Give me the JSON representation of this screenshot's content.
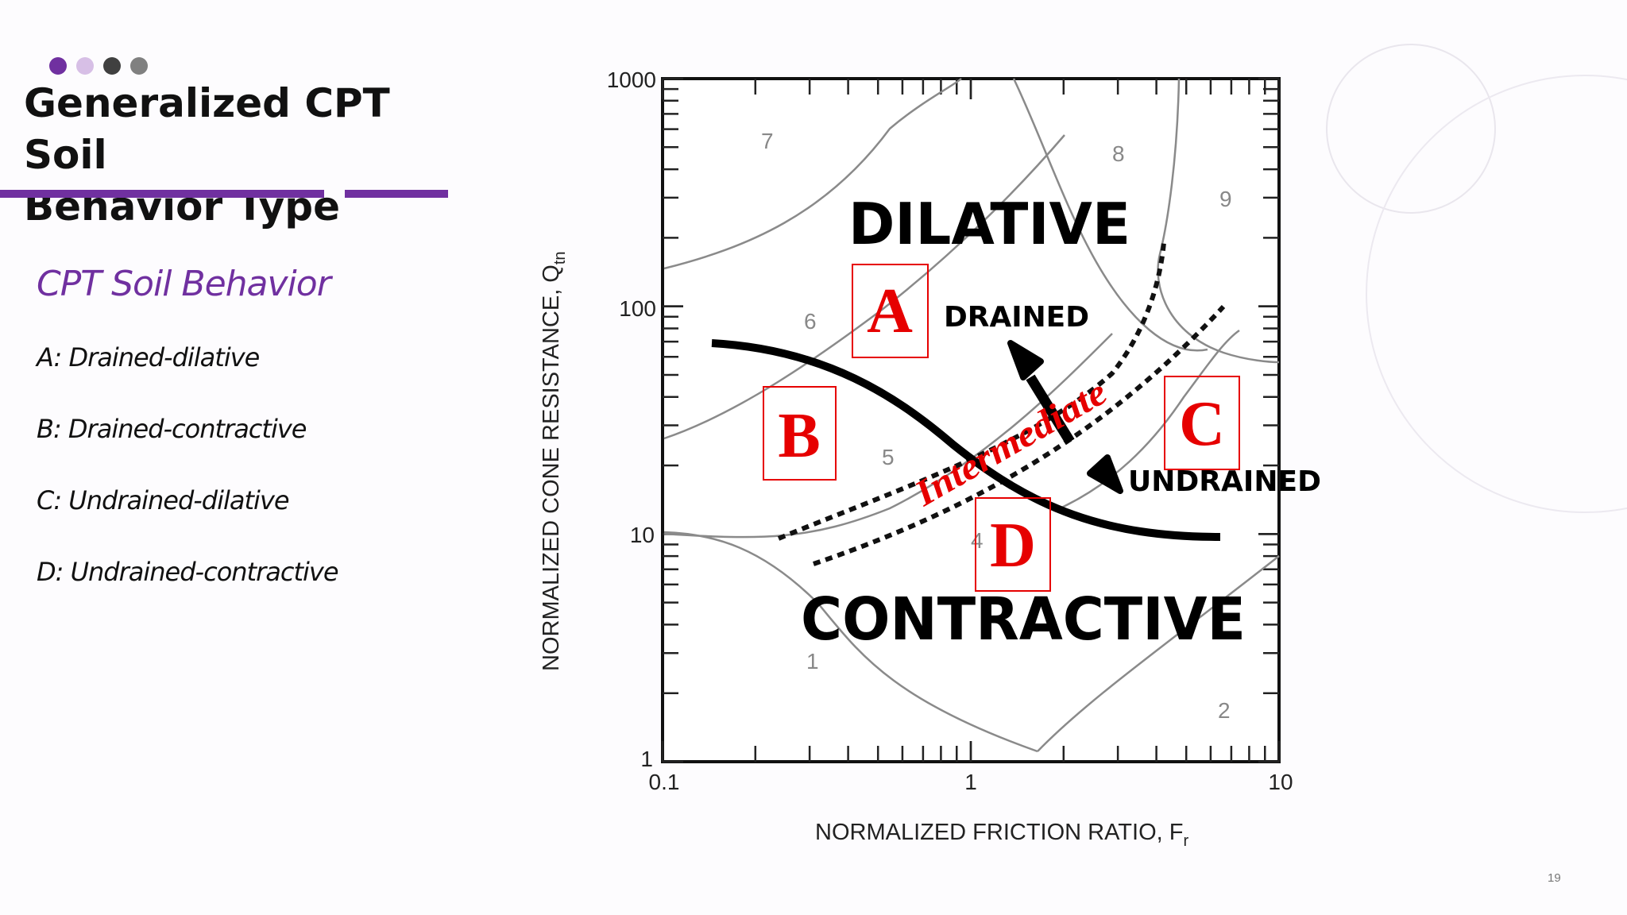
{
  "slide": {
    "title_line1": "Generalized CPT Soil",
    "title_line2": "Behavior Type",
    "subtitle": "CPT Soil Behavior",
    "items": [
      "A: Drained-dilative",
      "B: Drained-contractive",
      "C: Undrained-dilative",
      "D: Undrained-contractive"
    ],
    "page_number": "19",
    "colors": {
      "accent": "#7030a0",
      "dot_light": "#d7bfe6",
      "dot_dark": "#404040",
      "dot_gray": "#808080",
      "box_red": "#e60000"
    }
  },
  "diagram": {
    "x_axis": {
      "label": "NORMALIZED FRICTION RATIO, F",
      "label_sub": "r",
      "scale": "log",
      "range": [
        0.1,
        10
      ],
      "ticks": [
        "0.1",
        "1",
        "10"
      ]
    },
    "y_axis": {
      "label": "NORMALIZED CONE RESISTANCE, Q",
      "label_sub": "tn",
      "scale": "log",
      "range": [
        1,
        1000
      ],
      "ticks": [
        "1",
        "10",
        "100",
        "1000"
      ]
    },
    "zone_numbers": [
      "7",
      "8",
      "9",
      "6",
      "5",
      "4",
      "1",
      "2"
    ],
    "labels": {
      "dilative": "DILATIVE",
      "contractive": "CONTRACTIVE",
      "drained": "DRAINED",
      "undrained": "UNDRAINED",
      "intermediate": "Intermediate"
    },
    "boxes": [
      "A",
      "B",
      "C",
      "D"
    ]
  }
}
